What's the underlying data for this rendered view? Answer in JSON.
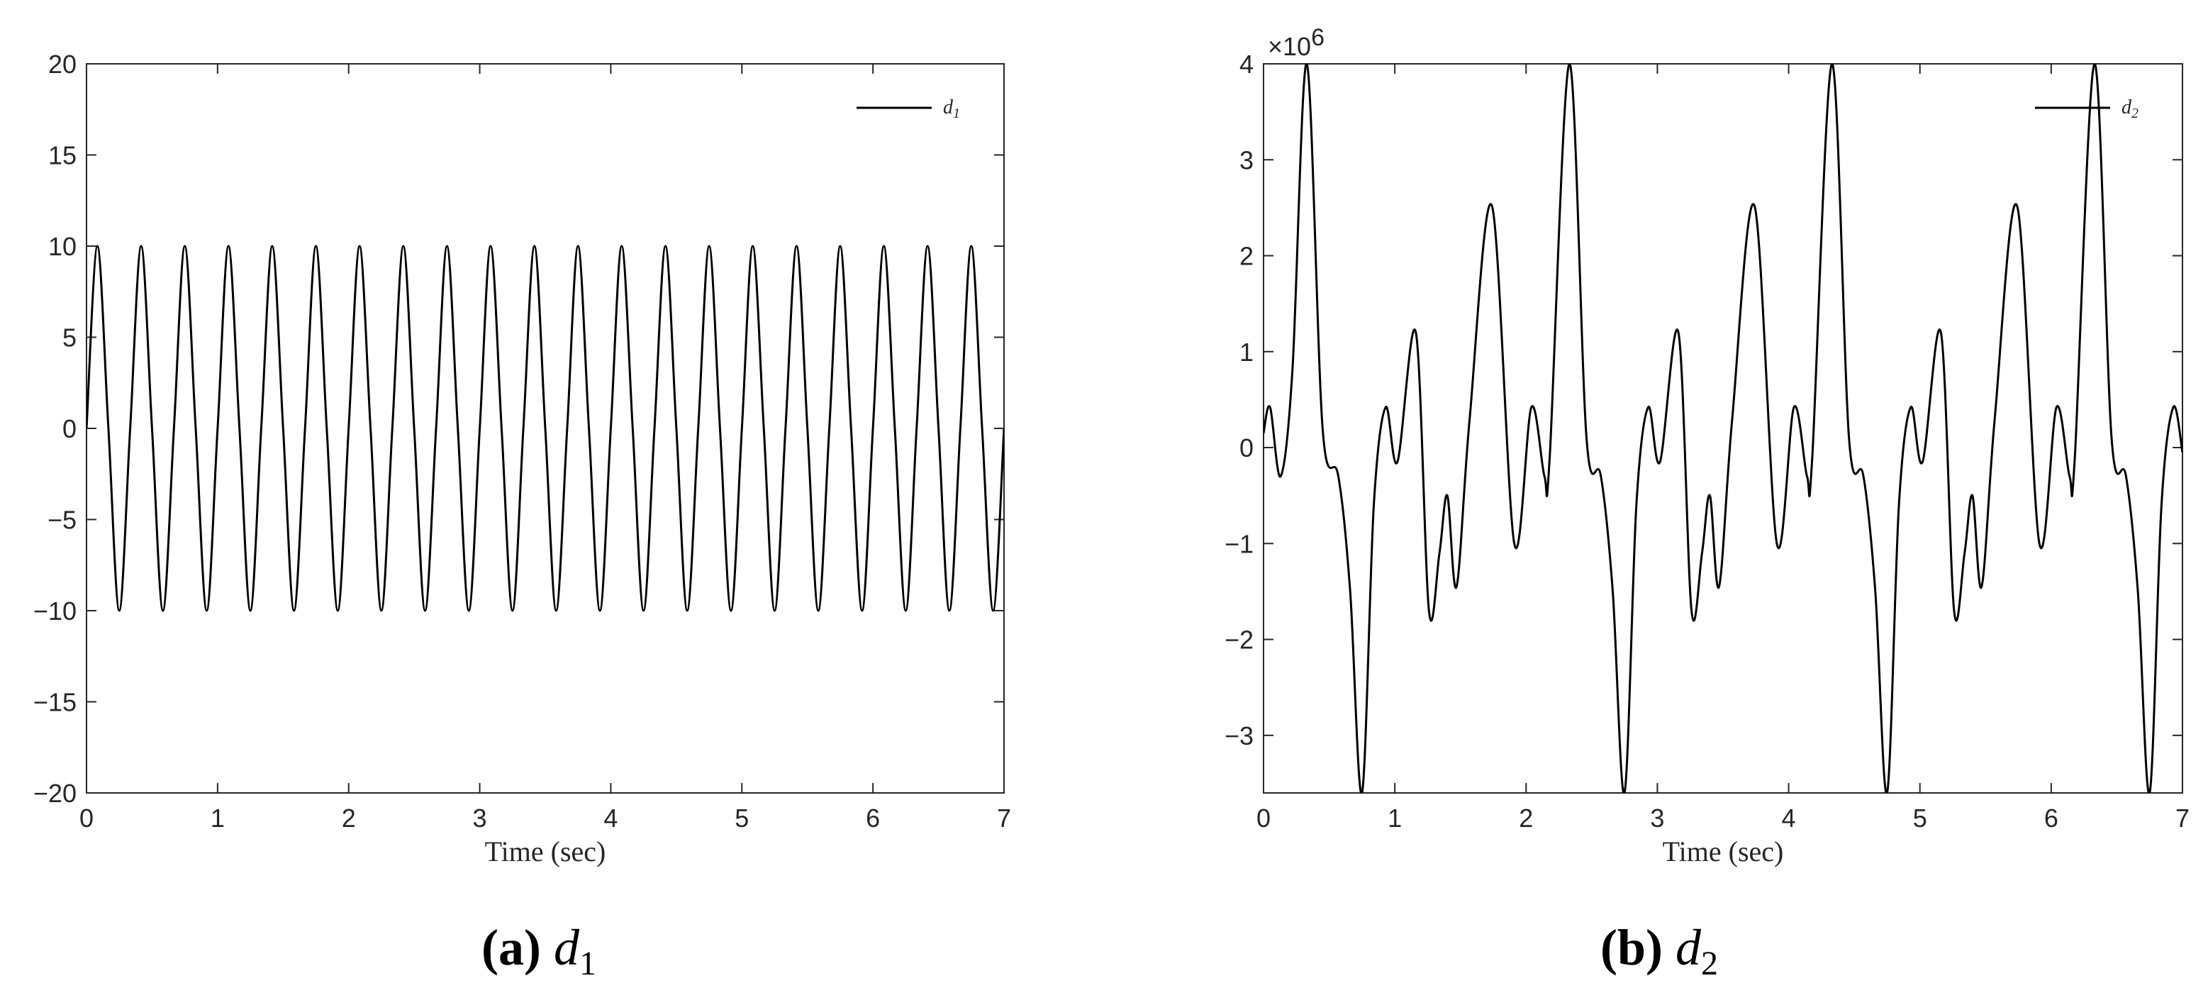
{
  "chart_data": [
    {
      "type": "line",
      "panel": "a",
      "caption": {
        "label": "(a)",
        "symbol": "d",
        "subscript": "1"
      },
      "xlabel": "Time (sec)",
      "ylabel": "",
      "xlim": [
        0,
        7
      ],
      "ylim": [
        -20,
        20
      ],
      "xticks": [
        0,
        1,
        2,
        3,
        4,
        5,
        6,
        7
      ],
      "xtick_labels": [
        "0",
        "1",
        "2",
        "3",
        "4",
        "5",
        "6",
        "7"
      ],
      "yticks": [
        -20,
        -15,
        -10,
        -5,
        0,
        5,
        10,
        15,
        20
      ],
      "ytick_labels": [
        "−20",
        "−15",
        "−10",
        "−5",
        "0",
        "5",
        "10",
        "15",
        "20"
      ],
      "legend": {
        "position": "top-right",
        "symbol": "d",
        "subscript": "1"
      },
      "series": [
        {
          "name": "d1",
          "color": "#000000",
          "x": [
            0.0,
            0.083,
            0.167,
            0.25,
            0.333,
            0.417,
            0.5,
            0.583,
            0.667,
            0.75,
            0.833,
            0.917,
            1.0,
            1.083,
            1.167,
            1.25,
            1.333,
            1.417,
            1.5,
            1.583,
            1.667,
            1.75,
            1.833,
            1.917,
            2.0,
            2.083,
            2.167,
            2.25,
            2.333,
            2.417,
            2.5,
            2.583,
            2.667,
            2.75,
            2.833,
            2.917,
            3.0,
            3.083,
            3.167,
            3.25,
            3.333,
            3.417,
            3.5,
            3.583,
            3.667,
            3.75,
            3.833,
            3.917,
            4.0,
            4.083,
            4.167,
            4.25,
            4.333,
            4.417,
            4.5,
            4.583,
            4.667,
            4.75,
            4.833,
            4.917,
            5.0,
            5.083,
            5.167,
            5.25,
            5.333,
            5.417,
            5.5,
            5.583,
            5.667,
            5.75,
            5.833,
            5.917,
            6.0,
            6.083,
            6.167,
            6.25,
            6.333,
            6.417,
            6.5,
            6.583,
            6.667,
            6.75,
            6.833,
            6.917,
            7.0
          ],
          "y": [
            0,
            10,
            0,
            -10,
            0,
            10,
            0,
            -10,
            0,
            10,
            0,
            -10,
            0,
            10,
            0,
            -10,
            0,
            10,
            0,
            -10,
            0,
            10,
            0,
            -10,
            0,
            10,
            0,
            -10,
            0,
            10,
            0,
            -10,
            0,
            10,
            0,
            -10,
            0,
            10,
            0,
            -10,
            0,
            10,
            0,
            -10,
            0,
            10,
            0,
            -10,
            0,
            10,
            0,
            -10,
            0,
            10,
            0,
            -10,
            0,
            10,
            0,
            -10,
            0,
            10,
            0,
            -10,
            0,
            10,
            0,
            -10,
            0,
            10,
            0,
            -10,
            0,
            10,
            0,
            -10,
            0,
            10,
            0,
            -10,
            0,
            10,
            0,
            -10,
            0
          ]
        }
      ]
    },
    {
      "type": "line",
      "panel": "b",
      "caption": {
        "label": "(b)",
        "symbol": "d",
        "subscript": "2"
      },
      "xlabel": "Time (sec)",
      "ylabel": "",
      "xlim": [
        0,
        7
      ],
      "ylim": [
        -3.6,
        4
      ],
      "y_multiplier": {
        "base": "×10",
        "exponent": "6"
      },
      "xticks": [
        0,
        1,
        2,
        3,
        4,
        5,
        6,
        7
      ],
      "xtick_labels": [
        "0",
        "1",
        "2",
        "3",
        "4",
        "5",
        "6",
        "7"
      ],
      "yticks": [
        -3,
        -2,
        -1,
        0,
        1,
        2,
        3,
        4
      ],
      "ytick_labels": [
        "−3",
        "−2",
        "−1",
        "0",
        "1",
        "2",
        "3",
        "4"
      ],
      "legend": {
        "position": "top-right",
        "symbol": "d",
        "subscript": "2"
      },
      "series": [
        {
          "name": "d2",
          "color": "#000000",
          "x": [
            0.0,
            0.05,
            0.13,
            0.22,
            0.33,
            0.45,
            0.57,
            0.66,
            0.75,
            0.84,
            0.93,
            1.02,
            1.16,
            1.26,
            1.34,
            1.4,
            1.47,
            1.57,
            1.74,
            1.91,
            2.04,
            2.14,
            2.18,
            2.33,
            2.46,
            2.57,
            2.66,
            2.75,
            2.84,
            2.93,
            3.02,
            3.16,
            3.26,
            3.34,
            3.4,
            3.47,
            3.57,
            3.74,
            3.91,
            4.04,
            4.14,
            4.18,
            4.33,
            4.46,
            4.57,
            4.66,
            4.75,
            4.84,
            4.93,
            5.02,
            5.16,
            5.26,
            5.34,
            5.4,
            5.47,
            5.57,
            5.74,
            5.91,
            6.04,
            6.14,
            6.18,
            6.33,
            6.46,
            6.57,
            6.66,
            6.75,
            6.84,
            6.93,
            7.0
          ],
          "y": [
            0.15,
            0.42,
            -0.3,
            0.8,
            4.0,
            0.2,
            -0.3,
            -1.5,
            -3.6,
            -0.6,
            0.42,
            -0.15,
            1.2,
            -1.7,
            -1.1,
            -0.5,
            -1.45,
            0.3,
            2.52,
            -1.0,
            0.42,
            -0.3,
            -0.1,
            4.0,
            0.1,
            -0.3,
            -1.5,
            -3.6,
            -0.6,
            0.42,
            -0.15,
            1.2,
            -1.7,
            -1.1,
            -0.5,
            -1.45,
            0.3,
            2.52,
            -1.0,
            0.42,
            -0.3,
            -0.1,
            4.0,
            0.1,
            -0.3,
            -1.5,
            -3.6,
            -0.6,
            0.42,
            -0.15,
            1.2,
            -1.7,
            -1.1,
            -0.5,
            -1.45,
            0.3,
            2.52,
            -1.0,
            0.42,
            -0.3,
            -0.1,
            4.0,
            0.1,
            -0.3,
            -1.5,
            -3.6,
            -0.6,
            0.42,
            -0.05
          ]
        }
      ]
    }
  ]
}
